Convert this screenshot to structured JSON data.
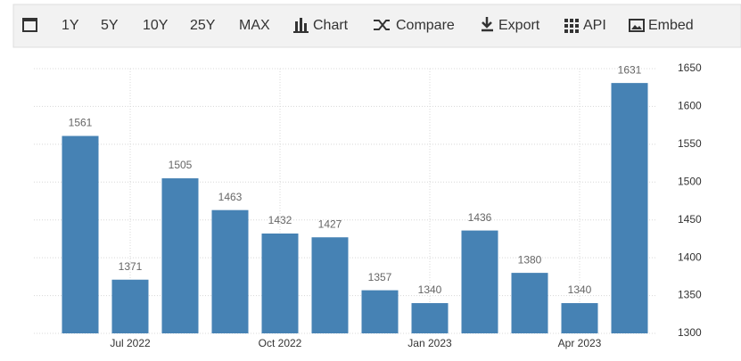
{
  "toolbar": {
    "items": [
      "1Y",
      "5Y",
      "10Y",
      "25Y",
      "MAX",
      "Chart",
      "Compare",
      "Export",
      "API",
      "Embed"
    ]
  },
  "chart_data": {
    "type": "bar",
    "categories": [
      null,
      "Jul 2022",
      null,
      null,
      "Oct 2022",
      null,
      null,
      "Jan 2023",
      null,
      null,
      "Apr 2023",
      null
    ],
    "values": [
      1561,
      1371,
      1505,
      1463,
      1432,
      1427,
      1357,
      1340,
      1436,
      1380,
      1340,
      1631
    ],
    "color": "#4682b4",
    "ylim": [
      1300,
      1650
    ],
    "yticks": [
      1300,
      1350,
      1400,
      1450,
      1500,
      1550,
      1600,
      1650
    ],
    "grid": true
  }
}
